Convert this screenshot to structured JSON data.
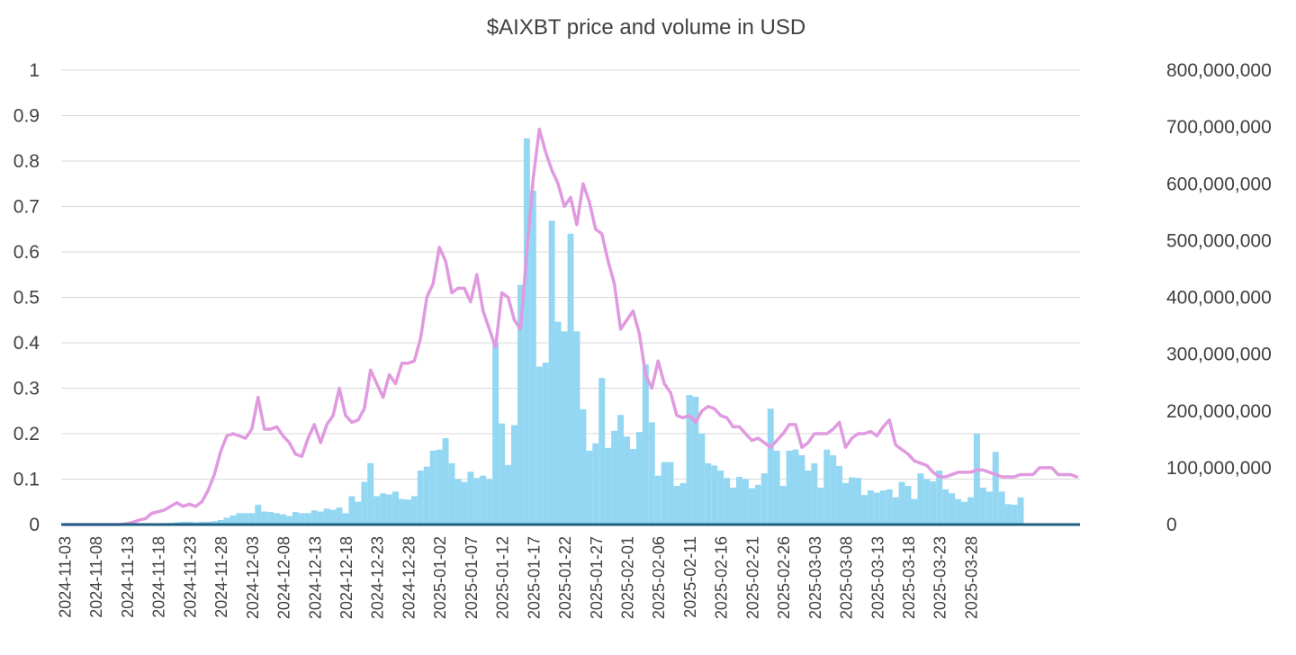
{
  "chart_data": {
    "type": "bar+line",
    "title": "$AIXBT price and volume in USD",
    "xlabel": "",
    "ylabel": "",
    "x_start": "2024-11-03",
    "x_end": "2025-04-01",
    "x_tick_labels": [
      "2024-11-03",
      "2024-11-08",
      "2024-11-13",
      "2024-11-18",
      "2024-11-23",
      "2024-11-28",
      "2024-12-03",
      "2024-12-08",
      "2024-12-13",
      "2024-12-18",
      "2024-12-23",
      "2024-12-28",
      "2025-01-02",
      "2025-01-07",
      "2025-01-12",
      "2025-01-17",
      "2025-01-22",
      "2025-01-27",
      "2025-02-01",
      "2025-02-06",
      "2025-02-11",
      "2025-02-16",
      "2025-02-21",
      "2025-02-26",
      "2025-03-03",
      "2025-03-08",
      "2025-03-13",
      "2025-03-18",
      "2025-03-23",
      "2025-03-28"
    ],
    "y_left": {
      "ylim": [
        0,
        1
      ],
      "tick_labels": [
        "0",
        "0.1",
        "0.2",
        "0.3",
        "0.4",
        "0.5",
        "0.6",
        "0.7",
        "0.8",
        "0.9",
        "1"
      ]
    },
    "y_right": {
      "ylim": [
        0,
        800000000
      ],
      "tick_labels": [
        "0",
        "100,000,000",
        "200,000,000",
        "300,000,000",
        "400,000,000",
        "500,000,000",
        "600,000,000",
        "700,000,000",
        "800,000,000"
      ]
    },
    "grid": true,
    "legend": "none",
    "colors": {
      "volume": "#93d7f3",
      "price": "#e09ae0",
      "baseline": "#1f5f82",
      "grid": "#d9d9d9",
      "text": "#404040"
    },
    "series": [
      {
        "type": "line",
        "axis": "left",
        "values": [
          0,
          0,
          0,
          0,
          0,
          0,
          0,
          0,
          0,
          0,
          0.002,
          0.005,
          0.01,
          0.013,
          0.025,
          0.028,
          0.032,
          0.04,
          0.048,
          0.04,
          0.045,
          0.04,
          0.05,
          0.075,
          0.11,
          0.16,
          0.195,
          0.2,
          0.195,
          0.19,
          0.21,
          0.28,
          0.21,
          0.21,
          0.215,
          0.195,
          0.18,
          0.155,
          0.15,
          0.19,
          0.22,
          0.18,
          0.22,
          0.24,
          0.3,
          0.24,
          0.225,
          0.23,
          0.255,
          0.34,
          0.31,
          0.28,
          0.33,
          0.31,
          0.355,
          0.355,
          0.36,
          0.41,
          0.5,
          0.53,
          0.61,
          0.58,
          0.51,
          0.52,
          0.52,
          0.49,
          0.55,
          0.47,
          0.43,
          0.39,
          0.51,
          0.5,
          0.45,
          0.43,
          0.6,
          0.76,
          0.87,
          0.82,
          0.78,
          0.75,
          0.7,
          0.72,
          0.66,
          0.75,
          0.71,
          0.65,
          0.64,
          0.58,
          0.53,
          0.43,
          0.45,
          0.47,
          0.42,
          0.33,
          0.3,
          0.36,
          0.31,
          0.29,
          0.24,
          0.235,
          0.24,
          0.225,
          0.25,
          0.26,
          0.255,
          0.24,
          0.235,
          0.215,
          0.215,
          0.2,
          0.185,
          0.19,
          0.18,
          0.17,
          0.185,
          0.2,
          0.22,
          0.22,
          0.17,
          0.18,
          0.2,
          0.2,
          0.2,
          0.21,
          0.225,
          0.17,
          0.19,
          0.2,
          0.2,
          0.205,
          0.195,
          0.215,
          0.23,
          0.175,
          0.165,
          0.155,
          0.14,
          0.135,
          0.13,
          0.115,
          0.105,
          0.105,
          0.11,
          0.115,
          0.115,
          0.115,
          0.12,
          0.12,
          0.115,
          0.11,
          0.105,
          0.105,
          0.105,
          0.11,
          0.11,
          0.11,
          0.125,
          0.125,
          0.125,
          0.11,
          0.11,
          0.11,
          0.105
        ]
      },
      {
        "type": "bar",
        "axis": "right",
        "values": [
          0,
          0,
          0,
          0,
          0,
          0,
          0,
          0,
          0,
          0,
          0,
          500000,
          1000000,
          1500000,
          2000000,
          2000000,
          2500000,
          3000000,
          4000000,
          5000000,
          5000000,
          4000000,
          5000000,
          5000000,
          6000000,
          8000000,
          12000000,
          16000000,
          20000000,
          20000000,
          20000000,
          35000000,
          23000000,
          22000000,
          20000000,
          18000000,
          15000000,
          22000000,
          20000000,
          20000000,
          25000000,
          23000000,
          28000000,
          26000000,
          30000000,
          20000000,
          50000000,
          40000000,
          75000000,
          108000000,
          50000000,
          55000000,
          53000000,
          58000000,
          45000000,
          44000000,
          50000000,
          95000000,
          102000000,
          130000000,
          132000000,
          152000000,
          108000000,
          80000000,
          75000000,
          93000000,
          82000000,
          86000000,
          80000000,
          320000000,
          178000000,
          105000000,
          175000000,
          422000000,
          680000000,
          588000000,
          278000000,
          285000000,
          535000000,
          357000000,
          340000000,
          512000000,
          340000000,
          203000000,
          130000000,
          143000000,
          258000000,
          135000000,
          165000000,
          193000000,
          155000000,
          133000000,
          163000000,
          282000000,
          180000000,
          86000000,
          110000000,
          110000000,
          68000000,
          73000000,
          228000000,
          225000000,
          160000000,
          108000000,
          104000000,
          95000000,
          82000000,
          65000000,
          84000000,
          80000000,
          64000000,
          70000000,
          90000000,
          204000000,
          130000000,
          68000000,
          130000000,
          132000000,
          122000000,
          95000000,
          108000000,
          65000000,
          132000000,
          122000000,
          103000000,
          73000000,
          83000000,
          82000000,
          52000000,
          60000000,
          56000000,
          60000000,
          62000000,
          48000000,
          75000000,
          68000000,
          45000000,
          90000000,
          80000000,
          76000000,
          95000000,
          62000000,
          55000000,
          45000000,
          40000000,
          48000000,
          160000000,
          65000000,
          58000000,
          128000000,
          58000000,
          36000000,
          35000000,
          48000000
        ]
      }
    ]
  }
}
